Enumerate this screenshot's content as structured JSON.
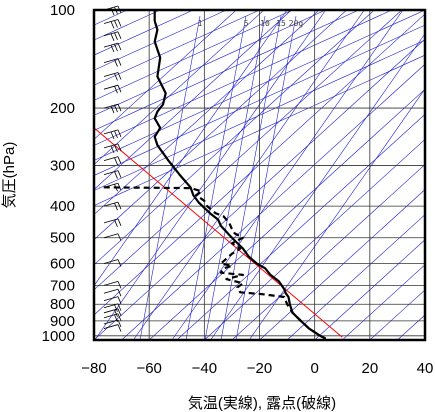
{
  "chart_data": {
    "type": "line",
    "title": "",
    "xlabel": "気温(実線), 露点(破線)",
    "ylabel": "気圧(hPa)",
    "xlim": [
      -80,
      40
    ],
    "ylim": [
      1030,
      100
    ],
    "y_scale": "log",
    "x_ticks": [
      "−80",
      "−60",
      "−40",
      "−20",
      "0",
      "20",
      "40"
    ],
    "x_tick_values": [
      -80,
      -60,
      -40,
      -20,
      0,
      20,
      40
    ],
    "y_ticks": [
      "100",
      "200",
      "300",
      "400",
      "500",
      "600",
      "700",
      "800",
      "900",
      "1000"
    ],
    "y_tick_values": [
      100,
      200,
      300,
      400,
      500,
      600,
      700,
      800,
      900,
      1000
    ],
    "mixing_ratio_labels": [
      "1",
      "5",
      "10",
      "15",
      "20g"
    ],
    "mixing_ratio_values": [
      1,
      5,
      10,
      15,
      20
    ],
    "colors": {
      "temperature": "#000000",
      "dewpoint": "#000000",
      "reference": "#ff0000",
      "background_lines": "#1f1fd0",
      "grid": "#333333",
      "barbs": "#000000"
    },
    "series": [
      {
        "name": "気温",
        "style": "solid",
        "points": [
          [
            4,
            1020
          ],
          [
            2,
            1000
          ],
          [
            -2,
            950
          ],
          [
            -5,
            900
          ],
          [
            -8,
            850
          ],
          [
            -9,
            800
          ],
          [
            -9.5,
            760
          ],
          [
            -10.5,
            740
          ],
          [
            -11,
            720
          ],
          [
            -12,
            700
          ],
          [
            -13,
            680
          ],
          [
            -16,
            650
          ],
          [
            -18,
            620
          ],
          [
            -21,
            600
          ],
          [
            -24,
            570
          ],
          [
            -26,
            540
          ],
          [
            -29,
            510
          ],
          [
            -31,
            490
          ],
          [
            -34,
            460
          ],
          [
            -35,
            440
          ],
          [
            -38,
            420
          ],
          [
            -42,
            390
          ],
          [
            -44,
            370
          ],
          [
            -45,
            350
          ],
          [
            -49,
            320
          ],
          [
            -53,
            290
          ],
          [
            -57,
            260
          ],
          [
            -58,
            245
          ],
          [
            -56,
            230
          ],
          [
            -58,
            215
          ],
          [
            -57,
            205
          ],
          [
            -55,
            195
          ],
          [
            -54,
            180
          ],
          [
            -57,
            160
          ],
          [
            -56,
            140
          ],
          [
            -58,
            125
          ],
          [
            -57,
            115
          ],
          [
            -58,
            108
          ],
          [
            -58,
            100
          ]
        ]
      },
      {
        "name": "露点",
        "style": "dashed",
        "points": [
          [
            4,
            1020
          ],
          [
            2,
            1000
          ],
          [
            -2,
            950
          ],
          [
            -5,
            900
          ],
          [
            -8,
            850
          ],
          [
            -10,
            800
          ],
          [
            -11,
            760
          ],
          [
            -19,
            745
          ],
          [
            -27,
            735
          ],
          [
            -28,
            710
          ],
          [
            -26,
            690
          ],
          [
            -32,
            670
          ],
          [
            -26,
            650
          ],
          [
            -34,
            640
          ],
          [
            -33,
            620
          ],
          [
            -30,
            610
          ],
          [
            -34,
            600
          ],
          [
            -32,
            580
          ],
          [
            -30,
            560
          ],
          [
            -27,
            540
          ],
          [
            -30,
            520
          ],
          [
            -26,
            500
          ],
          [
            -29,
            485
          ],
          [
            -30,
            470
          ],
          [
            -31,
            450
          ],
          [
            -33,
            430
          ],
          [
            -36,
            420
          ],
          [
            -39,
            400
          ],
          [
            -40,
            385
          ],
          [
            -43,
            370
          ],
          [
            -41,
            360
          ],
          [
            -45,
            352
          ],
          [
            -78,
            350
          ]
        ]
      }
    ],
    "reference_line": [
      [
        -80,
        230
      ],
      [
        10,
        1010
      ]
    ],
    "wind_barbs": [
      {
        "p": 100,
        "n": 3
      },
      {
        "p": 110,
        "n": 3
      },
      {
        "p": 120,
        "n": 3
      },
      {
        "p": 130,
        "n": 3
      },
      {
        "p": 145,
        "n": 2
      },
      {
        "p": 160,
        "n": 2
      },
      {
        "p": 175,
        "n": 2
      },
      {
        "p": 200,
        "n": 3
      },
      {
        "p": 240,
        "n": 3
      },
      {
        "p": 265,
        "n": 3
      },
      {
        "p": 290,
        "n": 2
      },
      {
        "p": 320,
        "n": 2
      },
      {
        "p": 350,
        "n": 2
      },
      {
        "p": 400,
        "n": 2
      },
      {
        "p": 450,
        "n": 2
      },
      {
        "p": 500,
        "n": 1
      },
      {
        "p": 600,
        "n": 1
      },
      {
        "p": 700,
        "n": 1
      },
      {
        "p": 740,
        "n": 1
      },
      {
        "p": 780,
        "n": 1
      },
      {
        "p": 820,
        "n": 2
      },
      {
        "p": 850,
        "n": 2
      },
      {
        "p": 880,
        "n": 2
      },
      {
        "p": 920,
        "n": 1
      },
      {
        "p": 950,
        "n": 1
      }
    ]
  }
}
